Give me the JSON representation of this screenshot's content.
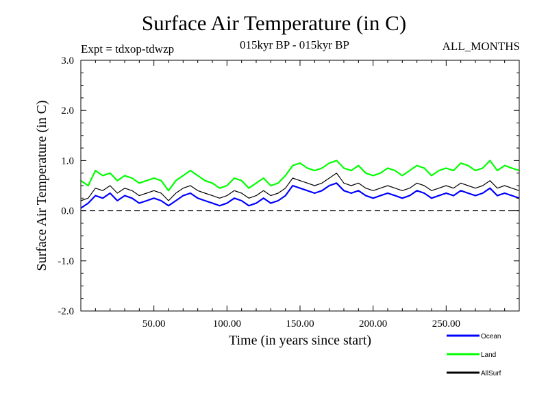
{
  "chart_data": {
    "type": "line",
    "title": "Surface Air Temperature (in C)",
    "experiment": "Expt = tdxop-tdwzp",
    "period": "015kyr BP - 015kyr BP",
    "months": "ALL_MONTHS",
    "xlabel": "Time (in years since start)",
    "ylabel": "Surface Air Temperature (in C)",
    "xlim": [
      0,
      300
    ],
    "ylim": [
      -2.0,
      3.0
    ],
    "x_ticks": [
      "50.00",
      "100.00",
      "150.00",
      "200.00",
      "250.00"
    ],
    "y_ticks": [
      "-2.0",
      "-1.0",
      "0.0",
      "1.0",
      "2.0",
      "3.0"
    ],
    "zero_line": "dashed",
    "legend_position": "bottom-right",
    "series": [
      {
        "name": "Ocean",
        "color": "#0000ff",
        "x": [
          0,
          5,
          10,
          15,
          20,
          25,
          30,
          35,
          40,
          45,
          50,
          55,
          60,
          65,
          70,
          75,
          80,
          85,
          90,
          95,
          100,
          105,
          110,
          115,
          120,
          125,
          130,
          135,
          140,
          145,
          150,
          155,
          160,
          165,
          170,
          175,
          180,
          185,
          190,
          195,
          200,
          205,
          210,
          215,
          220,
          225,
          230,
          235,
          240,
          245,
          250,
          255,
          260,
          265,
          270,
          275,
          280,
          285,
          290,
          295,
          300
        ],
        "values": [
          0.05,
          0.15,
          0.3,
          0.25,
          0.35,
          0.2,
          0.3,
          0.25,
          0.15,
          0.2,
          0.25,
          0.2,
          0.1,
          0.2,
          0.3,
          0.35,
          0.25,
          0.2,
          0.15,
          0.1,
          0.15,
          0.25,
          0.2,
          0.1,
          0.15,
          0.25,
          0.15,
          0.2,
          0.3,
          0.5,
          0.45,
          0.4,
          0.35,
          0.4,
          0.5,
          0.55,
          0.4,
          0.35,
          0.4,
          0.3,
          0.25,
          0.3,
          0.35,
          0.3,
          0.25,
          0.3,
          0.4,
          0.35,
          0.25,
          0.3,
          0.35,
          0.3,
          0.4,
          0.35,
          0.3,
          0.35,
          0.45,
          0.3,
          0.35,
          0.3,
          0.25
        ]
      },
      {
        "name": "Land",
        "color": "#00ff00",
        "x": [
          0,
          5,
          10,
          15,
          20,
          25,
          30,
          35,
          40,
          45,
          50,
          55,
          60,
          65,
          70,
          75,
          80,
          85,
          90,
          95,
          100,
          105,
          110,
          115,
          120,
          125,
          130,
          135,
          140,
          145,
          150,
          155,
          160,
          165,
          170,
          175,
          180,
          185,
          190,
          195,
          200,
          205,
          210,
          215,
          220,
          225,
          230,
          235,
          240,
          245,
          250,
          255,
          260,
          265,
          270,
          275,
          280,
          285,
          290,
          295,
          300
        ],
        "values": [
          0.6,
          0.5,
          0.8,
          0.7,
          0.75,
          0.6,
          0.7,
          0.65,
          0.55,
          0.6,
          0.65,
          0.6,
          0.4,
          0.6,
          0.7,
          0.8,
          0.7,
          0.6,
          0.55,
          0.45,
          0.5,
          0.65,
          0.6,
          0.45,
          0.55,
          0.65,
          0.5,
          0.55,
          0.7,
          0.9,
          0.95,
          0.85,
          0.8,
          0.85,
          0.95,
          1.0,
          0.85,
          0.8,
          0.9,
          0.75,
          0.7,
          0.75,
          0.85,
          0.8,
          0.7,
          0.8,
          0.9,
          0.85,
          0.7,
          0.8,
          0.85,
          0.8,
          0.95,
          0.9,
          0.8,
          0.85,
          1.0,
          0.8,
          0.9,
          0.85,
          0.8
        ]
      },
      {
        "name": "AllSurf",
        "color": "#000000",
        "x": [
          0,
          5,
          10,
          15,
          20,
          25,
          30,
          35,
          40,
          45,
          50,
          55,
          60,
          65,
          70,
          75,
          80,
          85,
          90,
          95,
          100,
          105,
          110,
          115,
          120,
          125,
          130,
          135,
          140,
          145,
          150,
          155,
          160,
          165,
          170,
          175,
          180,
          185,
          190,
          195,
          200,
          205,
          210,
          215,
          220,
          225,
          230,
          235,
          240,
          245,
          250,
          255,
          260,
          265,
          270,
          275,
          280,
          285,
          290,
          295,
          300
        ],
        "values": [
          0.2,
          0.25,
          0.45,
          0.4,
          0.5,
          0.35,
          0.45,
          0.4,
          0.3,
          0.35,
          0.4,
          0.35,
          0.2,
          0.35,
          0.45,
          0.5,
          0.4,
          0.35,
          0.3,
          0.25,
          0.3,
          0.4,
          0.35,
          0.25,
          0.3,
          0.4,
          0.3,
          0.35,
          0.45,
          0.65,
          0.6,
          0.55,
          0.5,
          0.55,
          0.65,
          0.75,
          0.55,
          0.5,
          0.55,
          0.45,
          0.4,
          0.45,
          0.5,
          0.45,
          0.4,
          0.45,
          0.55,
          0.5,
          0.4,
          0.45,
          0.5,
          0.45,
          0.55,
          0.5,
          0.45,
          0.5,
          0.6,
          0.45,
          0.5,
          0.45,
          0.4
        ]
      }
    ]
  }
}
